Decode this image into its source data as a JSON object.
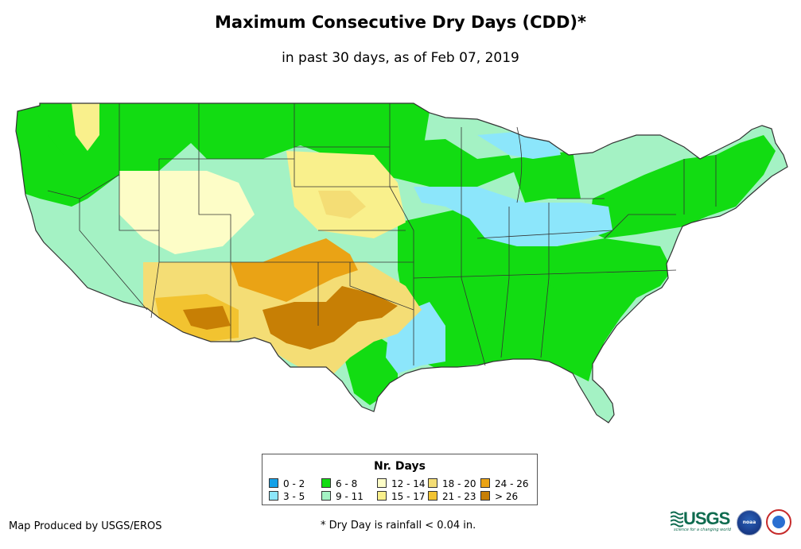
{
  "title": "Maximum Consecutive Dry Days (CDD)*",
  "subtitle": "in past 30 days, as of Feb 07, 2019",
  "legend": {
    "title": "Nr. Days",
    "items": [
      {
        "label": "0 - 2",
        "color": "#14a1e8"
      },
      {
        "label": "3 - 5",
        "color": "#8ce6fb"
      },
      {
        "label": "6 - 8",
        "color": "#12dc12"
      },
      {
        "label": "9 - 11",
        "color": "#a4f2c4"
      },
      {
        "label": "12 - 14",
        "color": "#fdfdc7"
      },
      {
        "label": "15 - 17",
        "color": "#f9f08c"
      },
      {
        "label": "18 - 20",
        "color": "#f4dd75"
      },
      {
        "label": "21 - 23",
        "color": "#f2c330"
      },
      {
        "label": "24 - 26",
        "color": "#eaa315"
      },
      {
        "label": "> 26",
        "color": "#c77f05"
      }
    ]
  },
  "credit": "Map Produced by USGS/EROS",
  "footnote": "* Dry Day is rainfall < 0.04 in.",
  "logos": {
    "usgs": "USGS",
    "usgs_tagline": "science for a changing world",
    "noaa": "noaa"
  },
  "map_colors": {
    "green": "#12dc12",
    "mint": "#a4f2c4",
    "cyan": "#8ce6fb",
    "cream": "#fdfdc7",
    "yellow": "#f9f08c",
    "tan": "#f4dd75",
    "gold": "#f2c330",
    "orange": "#eaa315",
    "brown": "#c77f05",
    "boundary": "#333333"
  }
}
